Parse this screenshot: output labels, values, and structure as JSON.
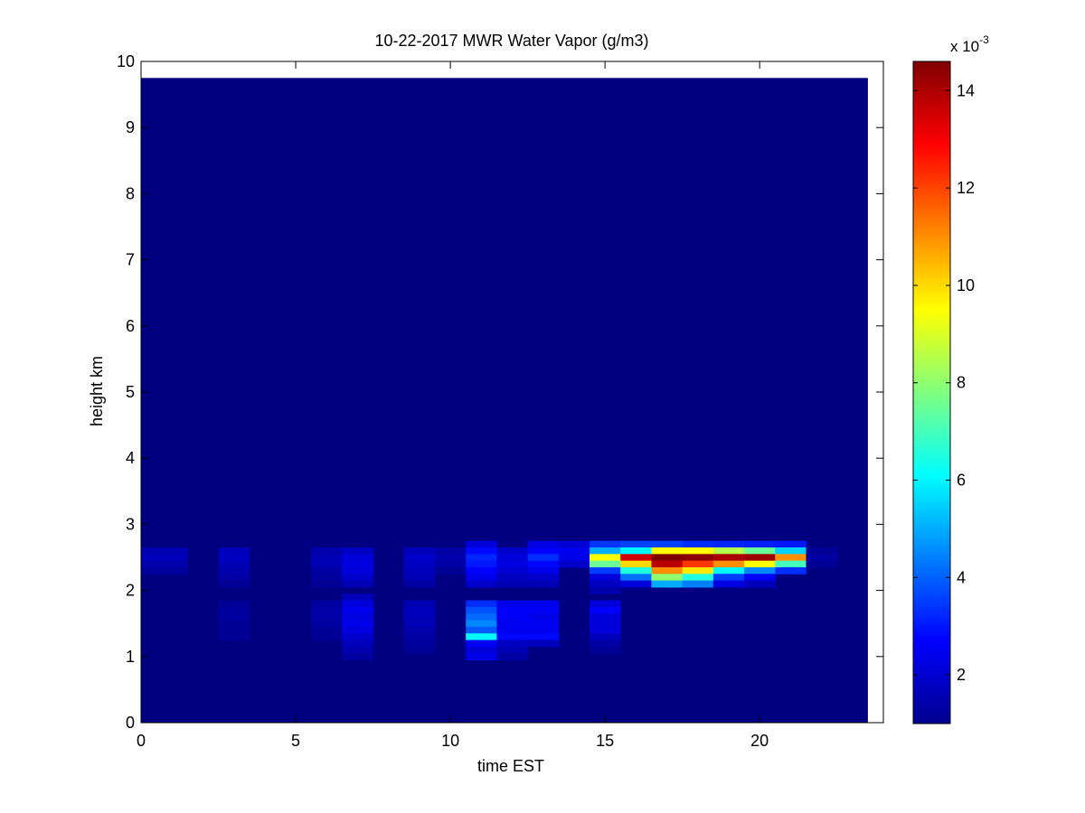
{
  "chart_data": {
    "type": "heatmap",
    "title": "10-22-2017 MWR Water Vapor (g/m3)",
    "xlabel": "time EST",
    "ylabel": "height km",
    "xlim": [
      0,
      24
    ],
    "ylim": [
      0,
      10
    ],
    "xticks": [
      0,
      5,
      10,
      15,
      20
    ],
    "yticks": [
      0,
      1,
      2,
      3,
      4,
      5,
      6,
      7,
      8,
      9,
      10
    ],
    "colorbar": {
      "colormap": "jet",
      "multiplier_label": "x 10",
      "multiplier_exponent": "-3",
      "range": [
        1,
        14.6
      ],
      "ticks": [
        2,
        4,
        6,
        8,
        10,
        12,
        14
      ]
    },
    "grid": false,
    "x_cells": [
      {
        "from": 0,
        "to": 0.5
      },
      {
        "from": 0.5,
        "to": 1.5
      },
      {
        "from": 1.5,
        "to": 2.5
      },
      {
        "from": 2.5,
        "to": 3.5
      },
      {
        "from": 3.5,
        "to": 4.5
      },
      {
        "from": 4.5,
        "to": 5.5
      },
      {
        "from": 5.5,
        "to": 6.5
      },
      {
        "from": 6.5,
        "to": 7.5
      },
      {
        "from": 7.5,
        "to": 8.5
      },
      {
        "from": 8.5,
        "to": 9.5
      },
      {
        "from": 9.5,
        "to": 10.5
      },
      {
        "from": 10.5,
        "to": 11.5
      },
      {
        "from": 11.5,
        "to": 12.5
      },
      {
        "from": 12.5,
        "to": 13.5
      },
      {
        "from": 13.5,
        "to": 14.5
      },
      {
        "from": 14.5,
        "to": 15.5
      },
      {
        "from": 15.5,
        "to": 16.5
      },
      {
        "from": 16.5,
        "to": 17.5
      },
      {
        "from": 17.5,
        "to": 18.5
      },
      {
        "from": 18.5,
        "to": 19.5
      },
      {
        "from": 19.5,
        "to": 20.5
      },
      {
        "from": 20.5,
        "to": 21.5
      },
      {
        "from": 21.5,
        "to": 22.5
      },
      {
        "from": 22.5,
        "to": 23.5
      }
    ],
    "data_top_km": 9.75,
    "background_value": 1.0,
    "cells": [
      {
        "x": 0,
        "y": [
          2.6,
          2.5,
          2.4,
          2.3
        ],
        "v": [
          1.7,
          1.8,
          1.6,
          1.4
        ]
      },
      {
        "x": 1,
        "y": [
          2.6,
          2.5,
          2.4,
          2.3
        ],
        "v": [
          1.7,
          1.8,
          1.6,
          1.4
        ]
      },
      {
        "x": 3,
        "y": [
          2.6,
          2.5,
          2.4,
          2.3,
          2.2,
          2.1
        ],
        "v": [
          1.8,
          1.9,
          1.7,
          1.6,
          1.5,
          1.3
        ]
      },
      {
        "x": 3,
        "y": [
          1.8,
          1.7,
          1.6,
          1.5,
          1.4,
          1.3
        ],
        "v": [
          1.3,
          1.4,
          1.4,
          1.3,
          1.3,
          1.3
        ]
      },
      {
        "x": 6,
        "y": [
          2.6,
          2.5,
          2.4,
          2.3,
          2.2,
          2.1
        ],
        "v": [
          1.6,
          1.7,
          1.7,
          1.5,
          1.4,
          1.3
        ]
      },
      {
        "x": 6,
        "y": [
          1.8,
          1.7,
          1.6,
          1.5,
          1.4,
          1.3
        ],
        "v": [
          1.4,
          1.5,
          1.5,
          1.4,
          1.3,
          1.3
        ]
      },
      {
        "x": 7,
        "y": [
          2.6,
          2.5,
          2.4,
          2.3,
          2.2,
          2.1
        ],
        "v": [
          1.9,
          2.2,
          2.3,
          2.2,
          2.0,
          1.7
        ]
      },
      {
        "x": 7,
        "y": [
          1.9,
          1.8,
          1.7,
          1.6,
          1.5,
          1.4,
          1.3,
          1.2,
          1.1,
          1.0
        ],
        "v": [
          1.8,
          2.2,
          2.5,
          2.3,
          2.4,
          2.3,
          2.0,
          1.8,
          1.6,
          1.4
        ]
      },
      {
        "x": 9,
        "y": [
          2.6,
          2.5,
          2.4,
          2.3,
          2.2,
          2.1
        ],
        "v": [
          1.8,
          2.0,
          1.9,
          1.8,
          1.7,
          1.5
        ]
      },
      {
        "x": 9,
        "y": [
          1.8,
          1.7,
          1.6,
          1.5,
          1.4,
          1.3,
          1.2,
          1.1
        ],
        "v": [
          1.7,
          1.8,
          1.8,
          1.7,
          1.6,
          1.5,
          1.4,
          1.3
        ]
      },
      {
        "x": 10,
        "y": [
          2.6,
          2.5,
          2.4,
          2.3
        ],
        "v": [
          1.5,
          1.6,
          1.5,
          1.3
        ]
      },
      {
        "x": 11,
        "y": [
          2.7,
          2.6,
          2.5,
          2.4,
          2.3,
          2.2,
          2.1
        ],
        "v": [
          2.2,
          2.8,
          3.2,
          3.0,
          2.7,
          2.4,
          2.0
        ]
      },
      {
        "x": 11,
        "y": [
          1.8,
          1.7,
          1.6,
          1.5,
          1.4,
          1.3,
          1.2,
          1.1,
          1.0
        ],
        "v": [
          3.3,
          3.8,
          4.1,
          4.5,
          3.9,
          6.0,
          2.6,
          2.2,
          2.4
        ]
      },
      {
        "x": 12,
        "y": [
          2.6,
          2.5,
          2.4,
          2.3,
          2.2,
          2.1
        ],
        "v": [
          2.0,
          2.2,
          2.3,
          2.1,
          1.9,
          1.7
        ]
      },
      {
        "x": 12,
        "y": [
          1.8,
          1.7,
          1.6,
          1.5,
          1.4,
          1.3,
          1.2,
          1.1,
          1.0
        ],
        "v": [
          2.4,
          2.6,
          2.6,
          2.5,
          2.5,
          2.8,
          1.9,
          1.7,
          1.5
        ]
      },
      {
        "x": 13,
        "y": [
          2.7,
          2.6,
          2.5,
          2.4,
          2.3,
          2.2,
          2.1
        ],
        "v": [
          2.3,
          2.7,
          3.3,
          2.8,
          2.4,
          2.0,
          1.7
        ]
      },
      {
        "x": 13,
        "y": [
          1.8,
          1.7,
          1.6,
          1.5,
          1.4,
          1.3,
          1.2
        ],
        "v": [
          2.5,
          2.6,
          2.4,
          2.5,
          2.5,
          2.8,
          1.8
        ]
      },
      {
        "x": 14,
        "y": [
          2.7,
          2.6,
          2.5,
          2.4
        ],
        "v": [
          2.1,
          2.5,
          2.4,
          2.0
        ]
      },
      {
        "x": 15,
        "y": [
          2.7,
          2.6,
          2.5,
          2.4,
          2.3,
          2.2,
          2.1,
          2.0
        ],
        "v": [
          3.4,
          5.0,
          9.5,
          7.5,
          3.5,
          2.2,
          1.9,
          1.6
        ]
      },
      {
        "x": 15,
        "y": [
          1.8,
          1.7,
          1.6,
          1.5,
          1.4,
          1.3,
          1.2,
          1.1
        ],
        "v": [
          2.2,
          2.7,
          2.2,
          2.2,
          2.2,
          1.8,
          1.5,
          1.3
        ]
      },
      {
        "x": 16,
        "y": [
          2.7,
          2.6,
          2.5,
          2.4,
          2.3,
          2.2,
          2.1
        ],
        "v": [
          3.6,
          6.0,
          13.5,
          10.0,
          6.5,
          4.2,
          2.2
        ]
      },
      {
        "x": 17,
        "y": [
          2.7,
          2.6,
          2.5,
          2.4,
          2.3,
          2.2,
          2.1
        ],
        "v": [
          3.6,
          9.5,
          14.6,
          13.8,
          11.0,
          8.0,
          5.0
        ]
      },
      {
        "x": 18,
        "y": [
          2.7,
          2.6,
          2.5,
          2.4,
          2.3,
          2.2,
          2.1
        ],
        "v": [
          3.3,
          9.5,
          14.4,
          12.2,
          9.8,
          6.5,
          4.4
        ]
      },
      {
        "x": 19,
        "y": [
          2.7,
          2.6,
          2.5,
          2.4,
          2.3,
          2.2,
          2.1
        ],
        "v": [
          3.2,
          8.5,
          14.0,
          11.0,
          6.0,
          3.5,
          2.3
        ]
      },
      {
        "x": 20,
        "y": [
          2.7,
          2.6,
          2.5,
          2.4,
          2.3,
          2.2,
          2.1
        ],
        "v": [
          3.1,
          7.5,
          14.2,
          9.5,
          4.5,
          2.6,
          1.8
        ]
      },
      {
        "x": 21,
        "y": [
          2.7,
          2.6,
          2.5,
          2.4,
          2.3
        ],
        "v": [
          3.0,
          5.5,
          11.0,
          7.0,
          3.3
        ]
      },
      {
        "x": 22,
        "y": [
          2.6,
          2.5,
          2.4
        ],
        "v": [
          1.3,
          1.5,
          1.3
        ]
      }
    ]
  }
}
